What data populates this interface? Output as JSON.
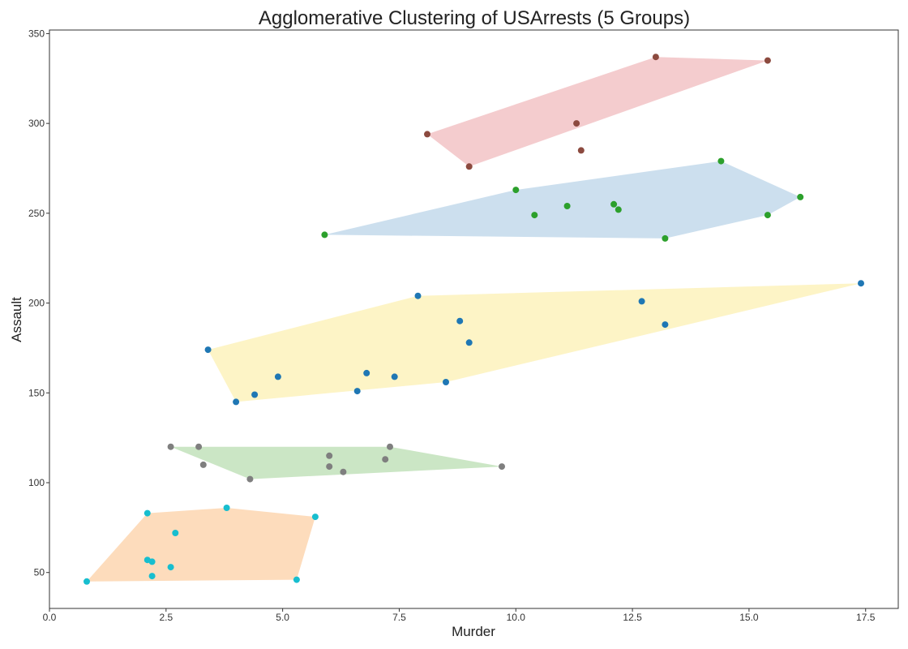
{
  "chart_data": {
    "type": "scatter",
    "title": "Agglomerative Clustering of USArrests (5 Groups)",
    "xlabel": "Murder",
    "ylabel": "Assault",
    "xlim": [
      0,
      18.2
    ],
    "ylim": [
      30,
      352
    ],
    "xticks": [
      0.0,
      2.5,
      5.0,
      7.5,
      10.0,
      12.5,
      15.0,
      17.5
    ],
    "xtick_labels": [
      "0.0",
      "2.5",
      "5.0",
      "7.5",
      "10.0",
      "12.5",
      "15.0",
      "17.5"
    ],
    "yticks": [
      50,
      100,
      150,
      200,
      250,
      300,
      350
    ],
    "ytick_labels": [
      "50",
      "100",
      "150",
      "200",
      "250",
      "300",
      "350"
    ],
    "grid": false,
    "series": [
      {
        "color": "#17becf",
        "hull_color": "#fdd8b5",
        "points": [
          [
            0.8,
            45
          ],
          [
            2.1,
            83
          ],
          [
            2.1,
            57
          ],
          [
            2.2,
            56
          ],
          [
            2.2,
            48
          ],
          [
            2.6,
            53
          ],
          [
            2.7,
            72
          ],
          [
            3.8,
            86
          ],
          [
            5.3,
            46
          ],
          [
            5.7,
            81
          ]
        ],
        "hull": [
          [
            0.8,
            45
          ],
          [
            2.1,
            83
          ],
          [
            3.8,
            86
          ],
          [
            5.7,
            81
          ],
          [
            5.3,
            46
          ]
        ]
      },
      {
        "color": "#7f7f7f",
        "hull_color": "#c5e3bf",
        "points": [
          [
            2.6,
            120
          ],
          [
            3.2,
            120
          ],
          [
            3.3,
            110
          ],
          [
            4.3,
            102
          ],
          [
            6.0,
            115
          ],
          [
            6.0,
            109
          ],
          [
            6.3,
            106
          ],
          [
            7.2,
            113
          ],
          [
            7.3,
            120
          ],
          [
            9.7,
            109
          ]
        ],
        "hull": [
          [
            2.6,
            120
          ],
          [
            7.3,
            120
          ],
          [
            9.7,
            109
          ],
          [
            4.3,
            102
          ]
        ]
      },
      {
        "color": "#1f77b4",
        "hull_color": "#fdf3c0",
        "points": [
          [
            3.4,
            174
          ],
          [
            4.0,
            145
          ],
          [
            4.4,
            149
          ],
          [
            4.9,
            159
          ],
          [
            6.6,
            151
          ],
          [
            6.8,
            161
          ],
          [
            7.4,
            159
          ],
          [
            7.9,
            204
          ],
          [
            8.5,
            156
          ],
          [
            8.8,
            190
          ],
          [
            9.0,
            178
          ],
          [
            12.7,
            201
          ],
          [
            13.2,
            188
          ],
          [
            17.4,
            211
          ]
        ],
        "hull": [
          [
            3.4,
            174
          ],
          [
            7.9,
            204
          ],
          [
            17.4,
            211
          ],
          [
            8.5,
            156
          ],
          [
            4.0,
            145
          ]
        ]
      },
      {
        "color": "#2ca02c",
        "hull_color": "#c6dcec",
        "points": [
          [
            5.9,
            238
          ],
          [
            10.0,
            263
          ],
          [
            10.4,
            249
          ],
          [
            11.1,
            254
          ],
          [
            12.1,
            255
          ],
          [
            12.2,
            252
          ],
          [
            13.2,
            236
          ],
          [
            14.4,
            279
          ],
          [
            15.4,
            249
          ],
          [
            16.1,
            259
          ]
        ],
        "hull": [
          [
            5.9,
            238
          ],
          [
            10.0,
            263
          ],
          [
            14.4,
            279
          ],
          [
            16.1,
            259
          ],
          [
            15.4,
            249
          ],
          [
            13.2,
            236
          ]
        ]
      },
      {
        "color": "#8c4a3f",
        "hull_color": "#f3c6c9",
        "points": [
          [
            8.1,
            294
          ],
          [
            9.0,
            276
          ],
          [
            11.3,
            300
          ],
          [
            11.4,
            285
          ],
          [
            13.0,
            337
          ],
          [
            15.4,
            335
          ]
        ],
        "hull": [
          [
            8.1,
            294
          ],
          [
            13.0,
            337
          ],
          [
            15.4,
            335
          ],
          [
            9.0,
            276
          ]
        ]
      }
    ]
  }
}
